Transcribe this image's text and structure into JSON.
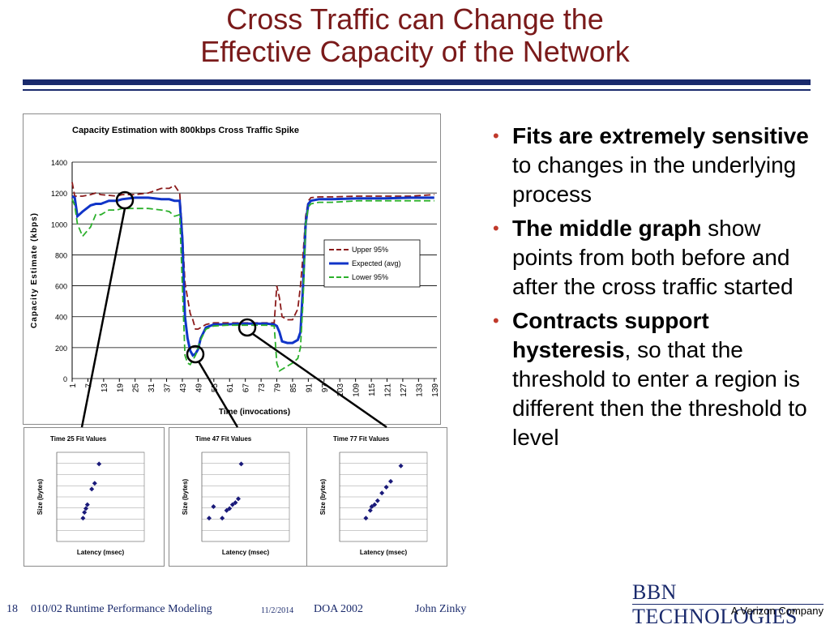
{
  "slide": {
    "title_line1": "Cross Traffic can Change the",
    "title_line2": "Effective Capacity of the Network",
    "title_color": "#7a1a1a",
    "rule_color": "#1a2a6c"
  },
  "bullets": [
    {
      "bold": "Fits are extremely sensitive",
      "rest": " to changes in the underlying process"
    },
    {
      "bold": "The middle graph",
      "rest": " show points from both before and after the cross traffic started"
    },
    {
      "bold": "Contracts support hysteresis",
      "rest": ", so that the threshold to enter a region is different then the threshold to level"
    }
  ],
  "footer": {
    "slide_number": "18",
    "course": "010/02  Runtime Performance Modeling",
    "date": "11/2/2014",
    "event": "DOA 2002",
    "author": "John Zinky"
  },
  "logo": {
    "name": "BBN TECHNOLOGIES",
    "sub": "A Verizon Company"
  },
  "chart_data": [
    {
      "type": "line",
      "title": "Capacity Estimation with 800kbps Cross Traffic Spike",
      "xlabel": "Time (invocations)",
      "ylabel": "Capacity Estimate (kbps)",
      "ylim": [
        0,
        1400
      ],
      "yticks": [
        0,
        200,
        400,
        600,
        800,
        1000,
        1200,
        1400
      ],
      "xticks": [
        "1",
        "7",
        "13",
        "19",
        "25",
        "31",
        "37",
        "43",
        "49",
        "55",
        "61",
        "67",
        "73",
        "79",
        "85",
        "91",
        "97",
        "103",
        "109",
        "115",
        "121",
        "127",
        "133",
        "139"
      ],
      "xlim": [
        1,
        140
      ],
      "grid": true,
      "legend_position": "center-right",
      "series": [
        {
          "name": "Upper 95%",
          "color": "#8b1a1a",
          "style": "dashed",
          "x": [
            1,
            2,
            3,
            5,
            8,
            10,
            12,
            15,
            18,
            20,
            25,
            30,
            35,
            38,
            40,
            42,
            43,
            44,
            45,
            46,
            47,
            48,
            49,
            50,
            52,
            55,
            60,
            65,
            70,
            75,
            78,
            79,
            80,
            81,
            83,
            85,
            87,
            88,
            89,
            90,
            91,
            92,
            95,
            100,
            110,
            120,
            130,
            139
          ],
          "y": [
            1270,
            1180,
            1180,
            1180,
            1190,
            1200,
            1190,
            1185,
            1180,
            1190,
            1190,
            1200,
            1230,
            1230,
            1250,
            1200,
            950,
            620,
            520,
            420,
            380,
            320,
            320,
            330,
            350,
            360,
            360,
            360,
            360,
            360,
            360,
            600,
            520,
            400,
            380,
            380,
            450,
            600,
            800,
            1050,
            1150,
            1170,
            1175,
            1175,
            1180,
            1180,
            1180,
            1190
          ]
        },
        {
          "name": "Expected (avg)",
          "color": "#1034c8",
          "style": "solid",
          "x": [
            1,
            2,
            3,
            5,
            8,
            10,
            12,
            15,
            18,
            20,
            25,
            30,
            35,
            38,
            40,
            42,
            43,
            44,
            45,
            46,
            47,
            48,
            49,
            50,
            52,
            55,
            60,
            65,
            70,
            75,
            78,
            79,
            80,
            81,
            83,
            85,
            87,
            88,
            89,
            90,
            91,
            92,
            95,
            100,
            110,
            120,
            130,
            139
          ],
          "y": [
            1180,
            1170,
            1050,
            1080,
            1120,
            1130,
            1130,
            1150,
            1150,
            1160,
            1170,
            1170,
            1160,
            1160,
            1150,
            1150,
            900,
            400,
            260,
            180,
            150,
            160,
            190,
            260,
            330,
            350,
            350,
            355,
            355,
            355,
            350,
            340,
            300,
            240,
            230,
            230,
            250,
            300,
            600,
            1000,
            1130,
            1150,
            1160,
            1160,
            1165,
            1165,
            1170,
            1170
          ]
        },
        {
          "name": "Lower 95%",
          "color": "#2bb02b",
          "style": "dashed",
          "x": [
            1,
            2,
            3,
            5,
            8,
            10,
            12,
            15,
            18,
            20,
            25,
            30,
            35,
            38,
            40,
            42,
            43,
            44,
            45,
            46,
            47,
            48,
            49,
            50,
            52,
            55,
            60,
            65,
            70,
            75,
            78,
            79,
            80,
            81,
            83,
            85,
            87,
            88,
            89,
            90,
            91,
            92,
            95,
            100,
            110,
            120,
            130,
            139
          ],
          "y": [
            1160,
            1120,
            1000,
            920,
            980,
            1060,
            1060,
            1090,
            1090,
            1100,
            1100,
            1100,
            1090,
            1080,
            1050,
            1060,
            600,
            150,
            100,
            90,
            120,
            150,
            200,
            250,
            320,
            340,
            345,
            345,
            345,
            345,
            340,
            100,
            50,
            60,
            80,
            100,
            130,
            200,
            500,
            1000,
            1110,
            1130,
            1140,
            1140,
            1150,
            1150,
            1150,
            1150
          ]
        }
      ]
    },
    {
      "type": "scatter",
      "title": "Time 25  Fit Values",
      "xlabel": "Latency (msec)",
      "ylabel": "Size (bytes)",
      "color": "#1a1a7a",
      "x": [
        18,
        19,
        20,
        21,
        24,
        26,
        29
      ],
      "y": [
        600,
        750,
        850,
        950,
        1350,
        1500,
        2000
      ]
    },
    {
      "type": "scatter",
      "title": "Time 47  Fit Values",
      "xlabel": "Latency (msec)",
      "ylabel": "Size (bytes)",
      "color": "#1a1a7a",
      "x": [
        5,
        8,
        14,
        17,
        19,
        21,
        23,
        25,
        27
      ],
      "y": [
        600,
        900,
        600,
        800,
        850,
        950,
        1000,
        1100,
        2000
      ]
    },
    {
      "type": "scatter",
      "title": "Time 77  Fit Values",
      "xlabel": "Latency (msec)",
      "ylabel": "Size (bytes)",
      "color": "#1a1a7a",
      "x": [
        18,
        21,
        22,
        24,
        26,
        29,
        32,
        35,
        42
      ],
      "y": [
        600,
        800,
        900,
        950,
        1050,
        1250,
        1400,
        1550,
        1950
      ]
    }
  ]
}
